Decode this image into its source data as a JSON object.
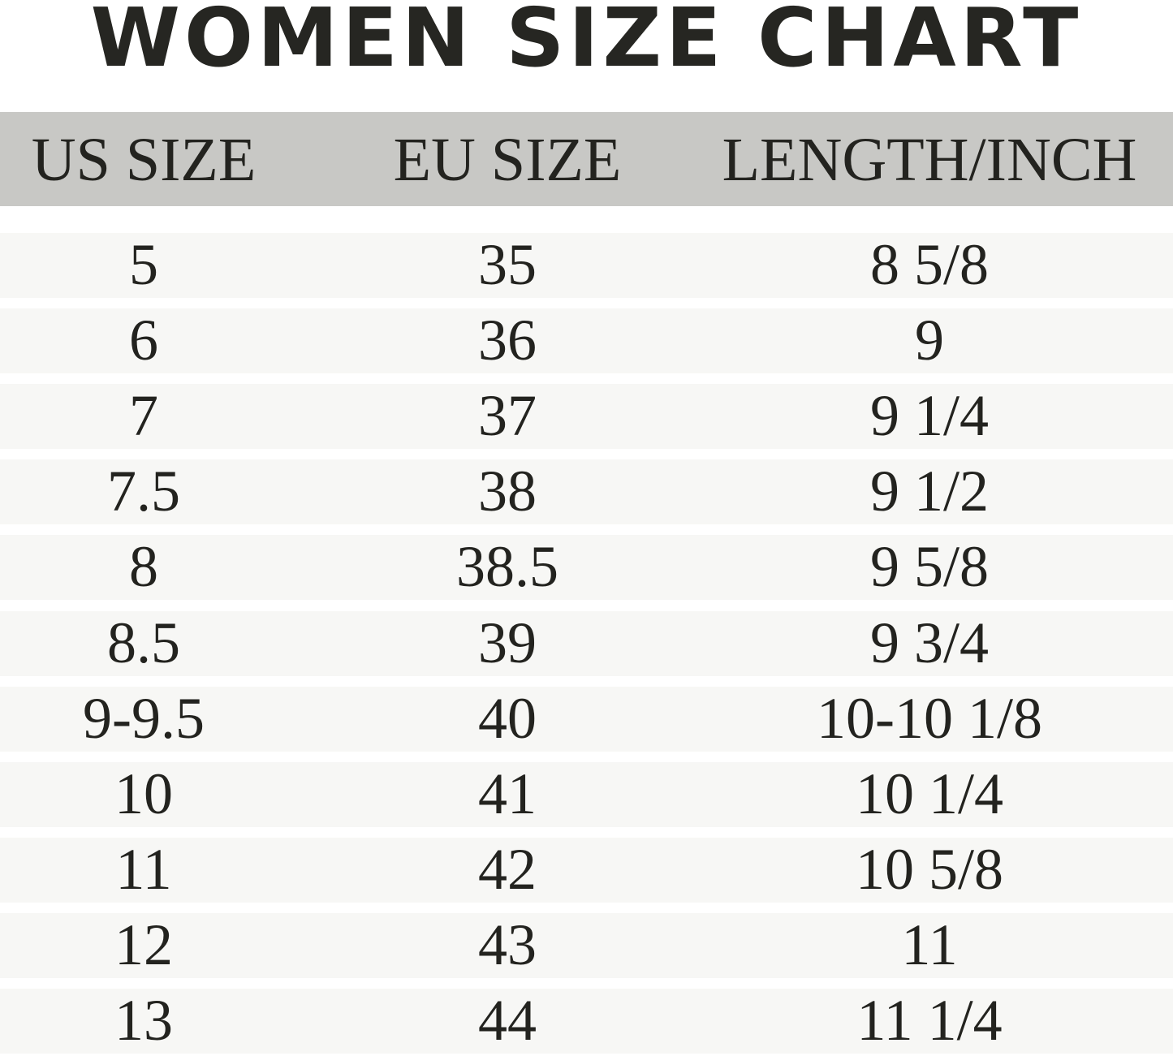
{
  "title": "WOMEN SIZE CHART",
  "colors": {
    "header_bg": "#c8c8c5",
    "row_bg": "#f7f7f5",
    "text": "#23231f"
  },
  "chart_data": {
    "type": "table",
    "title": "WOMEN SIZE CHART",
    "columns": [
      "US SIZE",
      "EU SIZE",
      "LENGTH/INCH"
    ],
    "rows": [
      [
        "5",
        "35",
        "8 5/8"
      ],
      [
        "6",
        "36",
        "9"
      ],
      [
        "7",
        "37",
        "9 1/4"
      ],
      [
        "7.5",
        "38",
        "9 1/2"
      ],
      [
        "8",
        "38.5",
        "9 5/8"
      ],
      [
        "8.5",
        "39",
        "9 3/4"
      ],
      [
        "9-9.5",
        "40",
        "10-10 1/8"
      ],
      [
        "10",
        "41",
        "10 1/4"
      ],
      [
        "11",
        "42",
        "10 5/8"
      ],
      [
        "12",
        "43",
        "11"
      ],
      [
        "13",
        "44",
        "11 1/4"
      ]
    ]
  }
}
